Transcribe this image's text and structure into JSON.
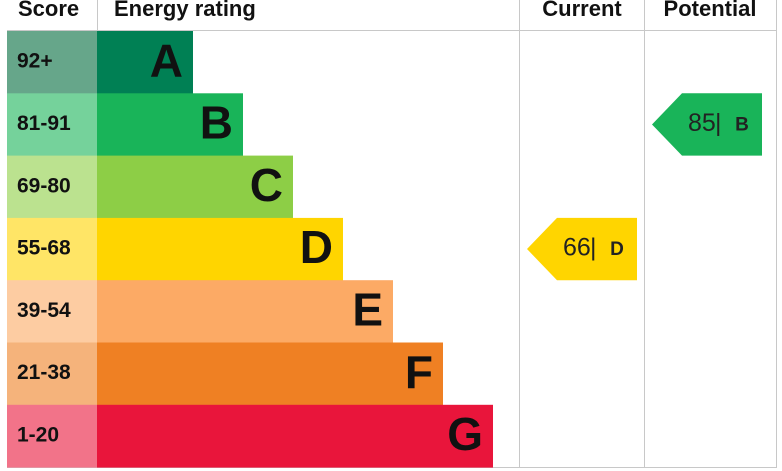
{
  "header": {
    "score": "Score",
    "rating": "Energy rating",
    "current": "Current",
    "potential": "Potential"
  },
  "bands": [
    {
      "score": "92+",
      "letter": "A",
      "color": "#008054",
      "light": "#66a68a"
    },
    {
      "score": "81-91",
      "letter": "B",
      "color": "#19b459",
      "light": "#75d29b"
    },
    {
      "score": "69-80",
      "letter": "C",
      "color": "#8dce46",
      "light": "#bbe28f"
    },
    {
      "score": "55-68",
      "letter": "D",
      "color": "#ffd500",
      "light": "#ffe566"
    },
    {
      "score": "39-54",
      "letter": "E",
      "color": "#fcaa65",
      "light": "#fdcca2"
    },
    {
      "score": "21-38",
      "letter": "F",
      "color": "#ef8023",
      "light": "#f5b37b"
    },
    {
      "score": "1-20",
      "letter": "G",
      "color": "#e9153b",
      "light": "#f27389"
    }
  ],
  "current": {
    "value": 66,
    "letter": "D"
  },
  "potential": {
    "value": 85,
    "letter": "B"
  }
}
